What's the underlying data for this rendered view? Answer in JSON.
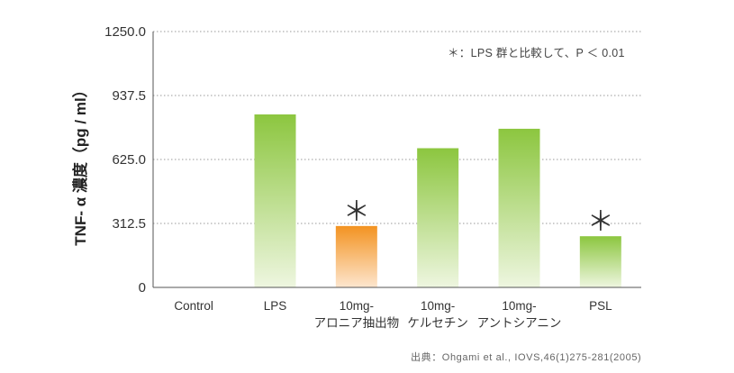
{
  "chart_data": {
    "type": "bar",
    "categories": [
      [
        "Control"
      ],
      [
        "LPS"
      ],
      [
        "10mg-",
        "アロニア抽出物"
      ],
      [
        "10mg-",
        "ケルセチン"
      ],
      [
        "10mg-",
        "アントシアニン"
      ],
      [
        "PSL"
      ]
    ],
    "values": [
      0,
      845,
      300,
      680,
      775,
      250
    ],
    "significant": [
      false,
      false,
      true,
      false,
      false,
      true
    ],
    "significance_marker": "＊",
    "bar_styles": [
      "green",
      "green",
      "orange",
      "green",
      "green",
      "green"
    ],
    "ylabel": "TNF- α 濃度（pg / ml）",
    "ylim": [
      0,
      1250
    ],
    "yticks": [
      "0",
      "312.5",
      "625.0",
      "937.5",
      "1250.0"
    ],
    "ytick_values": [
      0,
      312.5,
      625,
      937.5,
      1250
    ],
    "grid": true,
    "note": "＊：LPS 群と比較して、P ＜ 0.01",
    "source": "出典：Ohgami et al., IOVS,46(1)275-281(2005)",
    "colors": {
      "green_top": "#8cc63f",
      "green_bottom": "#eef6e0",
      "orange_top": "#f39321",
      "orange_bottom": "#fde6cf",
      "grid": "#999999"
    }
  }
}
